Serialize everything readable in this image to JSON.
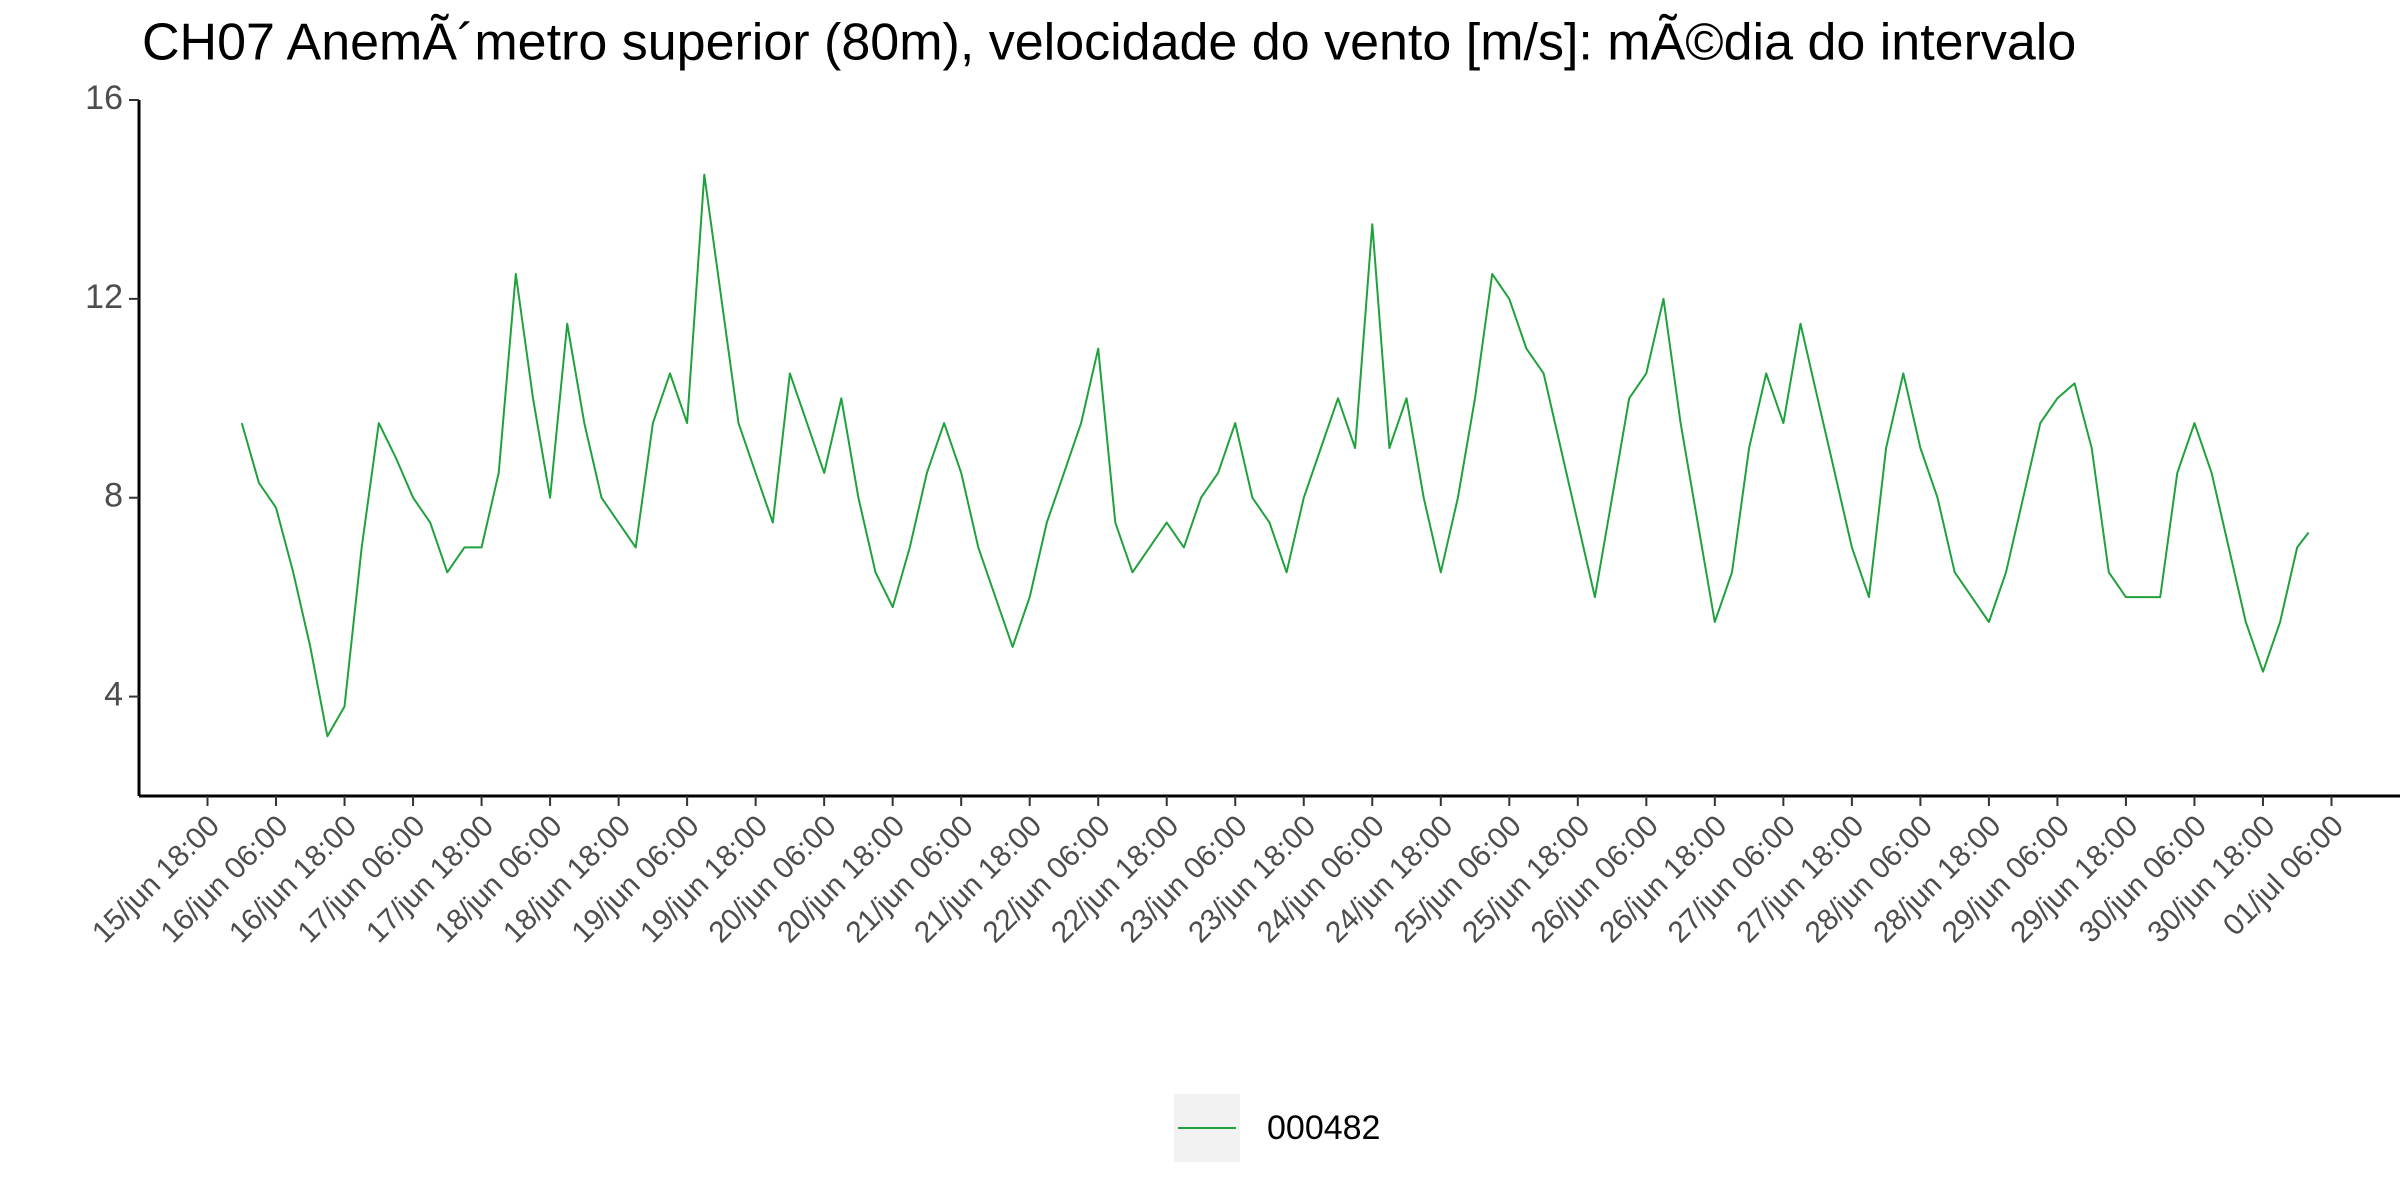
{
  "chart_data": {
    "type": "line",
    "title": "CH07 AnemÃ´metro superior (80m), velocidade do vento [m/s]: mÃ©dia do intervalo",
    "x": [
      "06-16 00:00",
      "06-16 03:00",
      "06-16 06:00",
      "06-16 09:00",
      "06-16 12:00",
      "06-16 15:00",
      "06-16 18:00",
      "06-16 21:00",
      "06-17 00:00",
      "06-17 03:00",
      "06-17 06:00",
      "06-17 09:00",
      "06-17 12:00",
      "06-17 15:00",
      "06-17 18:00",
      "06-17 21:00",
      "06-18 00:00",
      "06-18 03:00",
      "06-18 06:00",
      "06-18 09:00",
      "06-18 12:00",
      "06-18 15:00",
      "06-18 18:00",
      "06-18 21:00",
      "06-19 00:00",
      "06-19 03:00",
      "06-19 06:00",
      "06-19 09:00",
      "06-19 12:00",
      "06-19 15:00",
      "06-19 18:00",
      "06-19 21:00",
      "06-20 00:00",
      "06-20 03:00",
      "06-20 06:00",
      "06-20 09:00",
      "06-20 12:00",
      "06-20 15:00",
      "06-20 18:00",
      "06-20 21:00",
      "06-21 00:00",
      "06-21 03:00",
      "06-21 06:00",
      "06-21 09:00",
      "06-21 12:00",
      "06-21 15:00",
      "06-21 18:00",
      "06-21 21:00",
      "06-22 00:00",
      "06-22 03:00",
      "06-22 06:00",
      "06-22 09:00",
      "06-22 12:00",
      "06-22 15:00",
      "06-22 18:00",
      "06-22 21:00",
      "06-23 00:00",
      "06-23 03:00",
      "06-23 06:00",
      "06-23 09:00",
      "06-23 12:00",
      "06-23 15:00",
      "06-23 18:00",
      "06-23 21:00",
      "06-24 00:00",
      "06-24 03:00",
      "06-24 06:00",
      "06-24 09:00",
      "06-24 12:00",
      "06-24 15:00",
      "06-24 18:00",
      "06-24 21:00",
      "06-25 00:00",
      "06-25 03:00",
      "06-25 06:00",
      "06-25 09:00",
      "06-25 12:00",
      "06-25 15:00",
      "06-25 18:00",
      "06-25 21:00",
      "06-26 00:00",
      "06-26 03:00",
      "06-26 06:00",
      "06-26 09:00",
      "06-26 12:00",
      "06-26 15:00",
      "06-26 18:00",
      "06-26 21:00",
      "06-27 00:00",
      "06-27 03:00",
      "06-27 06:00",
      "06-27 09:00",
      "06-27 12:00",
      "06-27 15:00",
      "06-27 18:00",
      "06-27 21:00",
      "06-28 00:00",
      "06-28 03:00",
      "06-28 06:00",
      "06-28 09:00",
      "06-28 12:00",
      "06-28 15:00",
      "06-28 18:00",
      "06-28 21:00",
      "06-29 00:00",
      "06-29 03:00",
      "06-29 06:00",
      "06-29 09:00",
      "06-29 12:00",
      "06-29 15:00",
      "06-29 18:00",
      "06-29 21:00",
      "06-30 00:00",
      "06-30 03:00",
      "06-30 06:00",
      "06-30 09:00",
      "06-30 12:00",
      "06-30 15:00",
      "06-30 18:00",
      "06-30 21:00",
      "07-01 00:00",
      "07-01 02:00"
    ],
    "series": [
      {
        "name": "000482",
        "color": "#1fa23c",
        "values": [
          9.5,
          8.3,
          7.8,
          6.5,
          5.0,
          3.2,
          3.8,
          7.0,
          9.5,
          8.8,
          8.0,
          7.5,
          6.5,
          7.0,
          7.0,
          8.5,
          12.5,
          10.0,
          8.0,
          11.5,
          9.5,
          8.0,
          7.5,
          7.0,
          9.5,
          10.5,
          9.5,
          14.5,
          12.0,
          9.5,
          8.5,
          7.5,
          10.5,
          9.5,
          8.5,
          10.0,
          8.0,
          6.5,
          5.8,
          7.0,
          8.5,
          9.5,
          8.5,
          7.0,
          6.0,
          5.0,
          6.0,
          7.5,
          8.5,
          9.5,
          11.0,
          7.5,
          6.5,
          7.0,
          7.5,
          7.0,
          8.0,
          8.5,
          9.5,
          8.0,
          7.5,
          6.5,
          8.0,
          9.0,
          10.0,
          9.0,
          13.5,
          9.0,
          10.0,
          8.0,
          6.5,
          8.0,
          10.0,
          12.5,
          12.0,
          11.0,
          10.5,
          9.0,
          7.5,
          6.0,
          8.0,
          10.0,
          10.5,
          12.0,
          9.5,
          7.5,
          5.5,
          6.5,
          9.0,
          10.5,
          9.5,
          11.5,
          10.0,
          8.5,
          7.0,
          6.0,
          9.0,
          10.5,
          9.0,
          8.0,
          6.5,
          6.0,
          5.5,
          6.5,
          8.0,
          9.5,
          10.0,
          10.3,
          9.0,
          6.5,
          6.0,
          6.0,
          6.0,
          8.5,
          9.5,
          8.5,
          7.0,
          5.5,
          4.5,
          5.5,
          7.0,
          7.3
        ]
      }
    ],
    "xlim": [
      "06-15 06:00",
      "07-01 18:00"
    ],
    "xticks": [
      {
        "value": "06-15 18:00",
        "label": "15/jun 18:00"
      },
      {
        "value": "06-16 06:00",
        "label": "16/jun 06:00"
      },
      {
        "value": "06-16 18:00",
        "label": "16/jun 18:00"
      },
      {
        "value": "06-17 06:00",
        "label": "17/jun 06:00"
      },
      {
        "value": "06-17 18:00",
        "label": "17/jun 18:00"
      },
      {
        "value": "06-18 06:00",
        "label": "18/jun 06:00"
      },
      {
        "value": "06-18 18:00",
        "label": "18/jun 18:00"
      },
      {
        "value": "06-19 06:00",
        "label": "19/jun 06:00"
      },
      {
        "value": "06-19 18:00",
        "label": "19/jun 18:00"
      },
      {
        "value": "06-20 06:00",
        "label": "20/jun 06:00"
      },
      {
        "value": "06-20 18:00",
        "label": "20/jun 18:00"
      },
      {
        "value": "06-21 06:00",
        "label": "21/jun 06:00"
      },
      {
        "value": "06-21 18:00",
        "label": "21/jun 18:00"
      },
      {
        "value": "06-22 06:00",
        "label": "22/jun 06:00"
      },
      {
        "value": "06-22 18:00",
        "label": "22/jun 18:00"
      },
      {
        "value": "06-23 06:00",
        "label": "23/jun 06:00"
      },
      {
        "value": "06-23 18:00",
        "label": "23/jun 18:00"
      },
      {
        "value": "06-24 06:00",
        "label": "24/jun 06:00"
      },
      {
        "value": "06-24 18:00",
        "label": "24/jun 18:00"
      },
      {
        "value": "06-25 06:00",
        "label": "25/jun 06:00"
      },
      {
        "value": "06-25 18:00",
        "label": "25/jun 18:00"
      },
      {
        "value": "06-26 06:00",
        "label": "26/jun 06:00"
      },
      {
        "value": "06-26 18:00",
        "label": "26/jun 18:00"
      },
      {
        "value": "06-27 06:00",
        "label": "27/jun 06:00"
      },
      {
        "value": "06-27 18:00",
        "label": "27/jun 18:00"
      },
      {
        "value": "06-28 06:00",
        "label": "28/jun 06:00"
      },
      {
        "value": "06-28 18:00",
        "label": "28/jun 18:00"
      },
      {
        "value": "06-29 06:00",
        "label": "29/jun 06:00"
      },
      {
        "value": "06-29 18:00",
        "label": "29/jun 18:00"
      },
      {
        "value": "06-30 06:00",
        "label": "30/jun 06:00"
      },
      {
        "value": "06-30 18:00",
        "label": "30/jun 18:00"
      },
      {
        "value": "07-01 06:00",
        "label": "01/jul 06:00"
      }
    ],
    "ylim": [
      2,
      16
    ],
    "yticks": [
      4,
      8,
      12,
      16
    ],
    "grid": false,
    "legend": "bottom"
  }
}
